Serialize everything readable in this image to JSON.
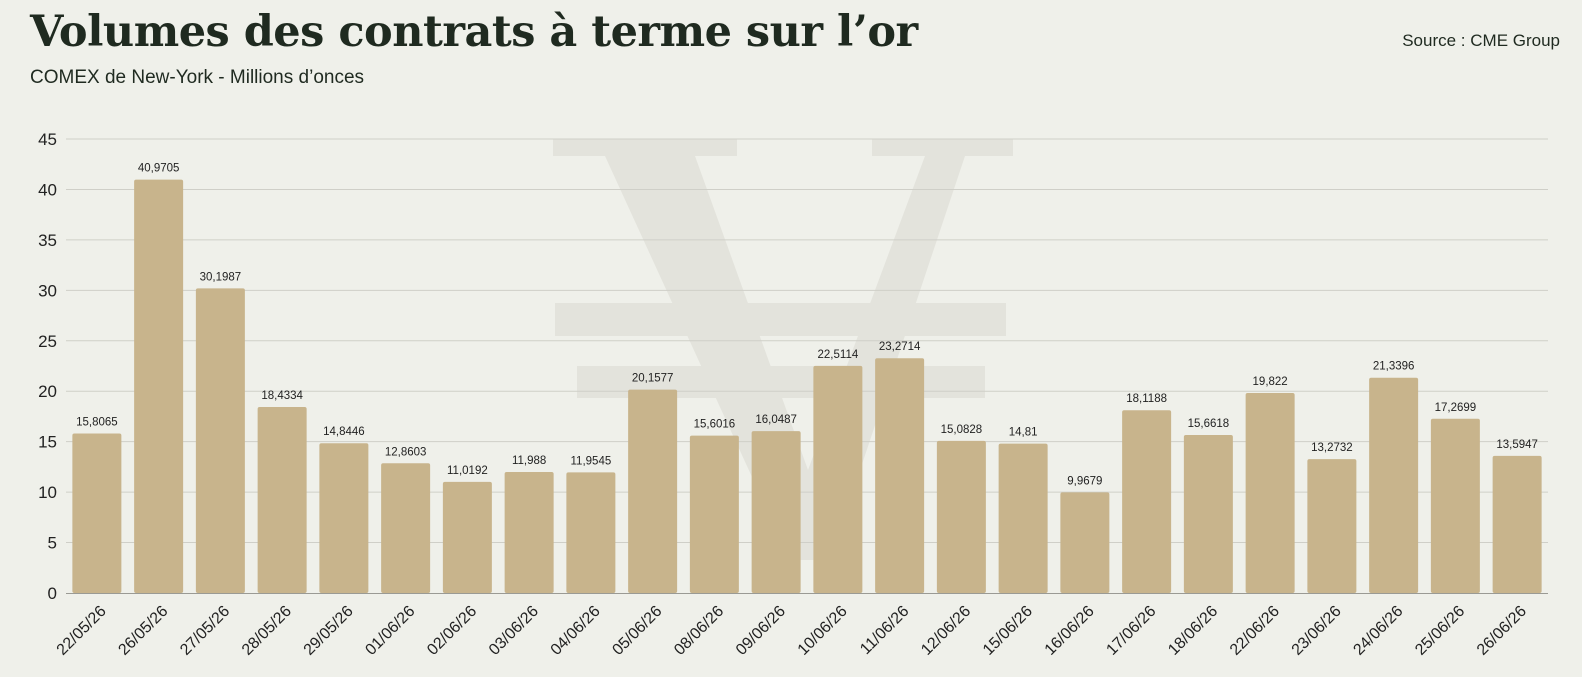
{
  "header": {
    "title": "Volumes des contrats à terme sur l’or",
    "subtitle": "COMEX de New-York - Millions d’onces",
    "source": "Source : CME Group"
  },
  "colors": {
    "bar": "#c8b48c",
    "grid": "#cfcfc8",
    "axis": "#9a9a94",
    "watermark": "#e3e3dc"
  },
  "chart_data": {
    "type": "bar",
    "title": "Volumes des contrats à terme sur l’or",
    "subtitle": "COMEX de New-York - Millions d’onces",
    "ylim": [
      0,
      45
    ],
    "yticks": [
      0,
      5,
      10,
      15,
      20,
      25,
      30,
      35,
      40,
      45
    ],
    "grid": true,
    "categories": [
      "22/05/26",
      "26/05/26",
      "27/05/26",
      "28/05/26",
      "29/05/26",
      "01/06/26",
      "02/06/26",
      "03/06/26",
      "04/06/26",
      "05/06/26",
      "08/06/26",
      "09/06/26",
      "10/06/26",
      "11/06/26",
      "12/06/26",
      "15/06/26",
      "16/06/26",
      "17/06/26",
      "18/06/26",
      "22/06/26",
      "23/06/26",
      "24/06/26",
      "25/06/26",
      "26/06/26"
    ],
    "values": [
      15.8065,
      40.9705,
      30.1987,
      18.4334,
      14.8446,
      12.8603,
      11.0192,
      11.988,
      11.9545,
      20.1577,
      15.6016,
      16.0487,
      22.5114,
      23.2714,
      15.0828,
      14.81,
      9.9679,
      18.1188,
      15.6618,
      19.822,
      13.2732,
      21.3396,
      17.2699,
      13.5947
    ],
    "value_labels": [
      "15,8065",
      "40,9705",
      "30,1987",
      "18,4334",
      "14,8446",
      "12,8603",
      "11,0192",
      "11,988",
      "11,9545",
      "20,1577",
      "15,6016",
      "16,0487",
      "22,5114",
      "23,2714",
      "15,0828",
      "14,81",
      "9,9679",
      "18,1188",
      "15,6618",
      "19,822",
      "13,2732",
      "21,3396",
      "17,2699",
      "13,5947"
    ]
  }
}
